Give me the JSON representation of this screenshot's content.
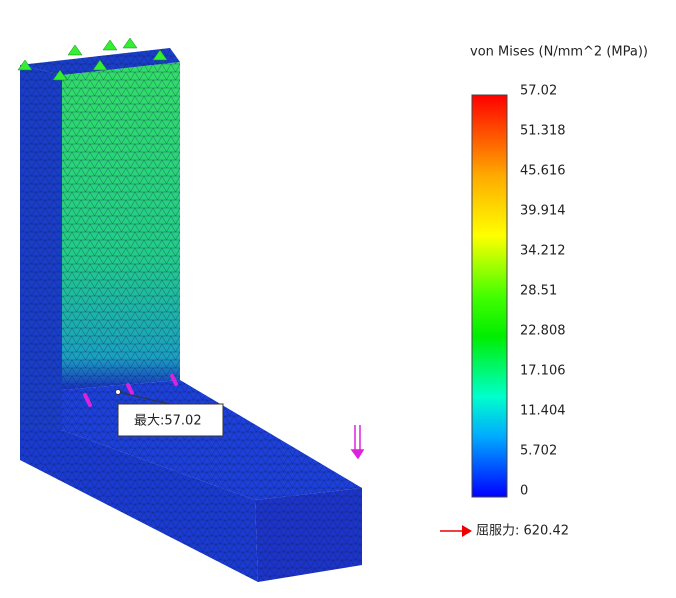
{
  "legend": {
    "title": "von Mises (N/mm^2 (MPa))",
    "labels": [
      "57.02",
      "51.318",
      "45.616",
      "39.914",
      "34.212",
      "28.51",
      "22.808",
      "17.106",
      "11.404",
      "5.702",
      "0"
    ]
  },
  "max_label": "最大:57.02",
  "yield_label": "屈服力: 620.42"
}
